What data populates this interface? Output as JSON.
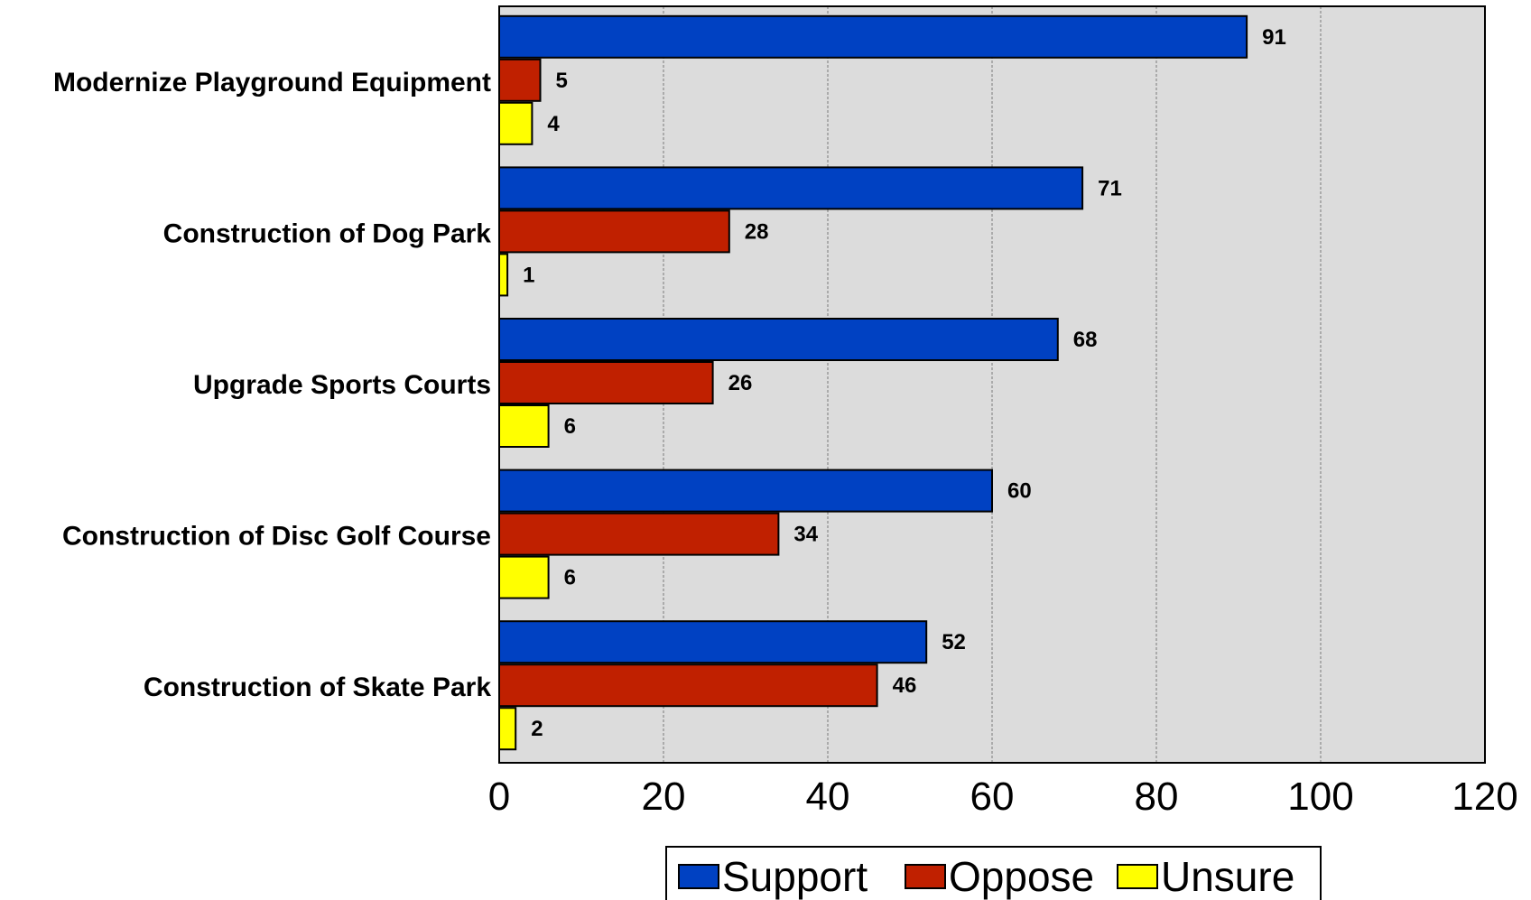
{
  "chart_data": {
    "type": "bar",
    "orientation": "horizontal",
    "categories": [
      "Modernize Playground Equipment",
      "Construction of Dog Park",
      "Upgrade Sports Courts",
      "Construction of Disc Golf Course",
      "Construction of Skate Park"
    ],
    "series": [
      {
        "name": "Support",
        "color": "#0041C2",
        "values": [
          91,
          71,
          68,
          60,
          52
        ]
      },
      {
        "name": "Oppose",
        "color": "#C02000",
        "values": [
          5,
          28,
          26,
          34,
          46
        ]
      },
      {
        "name": "Unsure",
        "color": "#FFFF00",
        "values": [
          4,
          1,
          6,
          6,
          2
        ]
      }
    ],
    "xlim": [
      0,
      120
    ],
    "xticks": [
      "0",
      "20",
      "40",
      "60",
      "80",
      "100",
      "120"
    ],
    "grid": "vertical dashed",
    "plot_background": "#DCDCDC",
    "legend_position": "bottom",
    "data_labels": true
  }
}
